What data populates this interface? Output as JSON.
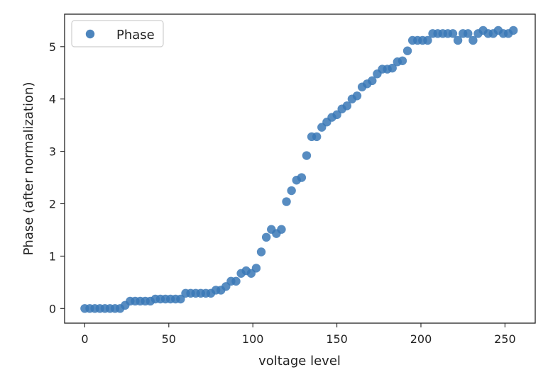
{
  "chart_data": {
    "type": "scatter",
    "title": "",
    "xlabel": "voltage level",
    "ylabel": "Phase (after normalization)",
    "xlim": [
      -12,
      268
    ],
    "ylim": [
      -0.28,
      5.62
    ],
    "xticks": [
      0,
      50,
      100,
      150,
      200,
      250
    ],
    "yticks": [
      0,
      1,
      2,
      3,
      4,
      5
    ],
    "grid": false,
    "legend": {
      "position": "top-left",
      "entries": [
        "Phase"
      ]
    },
    "series": [
      {
        "name": "Phase",
        "color": "#3a78b6",
        "x": [
          0,
          3,
          6,
          9,
          12,
          15,
          18,
          21,
          24,
          27,
          30,
          33,
          36,
          39,
          42,
          45,
          48,
          51,
          54,
          57,
          60,
          63,
          66,
          69,
          72,
          75,
          78,
          81,
          84,
          87,
          90,
          93,
          96,
          99,
          102,
          105,
          108,
          111,
          114,
          117,
          120,
          123,
          126,
          129,
          132,
          135,
          138,
          141,
          144,
          147,
          150,
          153,
          156,
          159,
          162,
          165,
          168,
          171,
          174,
          177,
          180,
          183,
          186,
          189,
          192,
          195,
          198,
          201,
          204,
          207,
          210,
          213,
          216,
          219,
          222,
          225,
          228,
          231,
          234,
          237,
          240,
          243,
          246,
          249,
          252,
          255
        ],
        "y": [
          0.0,
          0.0,
          0.0,
          0.0,
          0.0,
          0.0,
          0.0,
          0.0,
          0.06,
          0.14,
          0.14,
          0.14,
          0.14,
          0.14,
          0.18,
          0.18,
          0.18,
          0.18,
          0.18,
          0.18,
          0.29,
          0.29,
          0.29,
          0.29,
          0.29,
          0.29,
          0.35,
          0.35,
          0.42,
          0.52,
          0.52,
          0.67,
          0.72,
          0.67,
          0.77,
          1.08,
          1.36,
          1.51,
          1.43,
          1.51,
          2.04,
          2.25,
          2.45,
          2.5,
          2.92,
          3.28,
          3.28,
          3.46,
          3.56,
          3.65,
          3.7,
          3.81,
          3.87,
          4.0,
          4.06,
          4.23,
          4.29,
          4.35,
          4.48,
          4.57,
          4.57,
          4.59,
          4.71,
          4.73,
          4.92,
          5.12,
          5.12,
          5.12,
          5.12,
          5.25,
          5.25,
          5.25,
          5.25,
          5.25,
          5.12,
          5.25,
          5.25,
          5.12,
          5.25,
          5.31,
          5.25,
          5.25,
          5.31,
          5.25,
          5.25,
          5.31
        ]
      }
    ]
  }
}
